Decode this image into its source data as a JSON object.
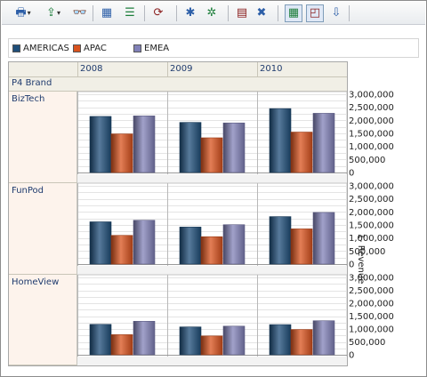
{
  "toolbar": {
    "buttons": [
      {
        "icon": "print-icon",
        "glyph": "🖶",
        "dropdown": true
      },
      {
        "icon": "export-icon",
        "glyph": "⇪",
        "dropdown": true
      },
      {
        "icon": "binoculars-icon",
        "glyph": "👓",
        "dropdown": false
      },
      {
        "icon": "insert-row-icon",
        "glyph": "▦",
        "dropdown": false
      },
      {
        "icon": "format-icon",
        "glyph": "☰",
        "dropdown": false
      },
      {
        "icon": "refresh-icon",
        "glyph": "⟳",
        "dropdown": false
      },
      {
        "icon": "new-star-icon",
        "glyph": "✱",
        "dropdown": false
      },
      {
        "icon": "add-star-icon",
        "glyph": "✲",
        "dropdown": false
      },
      {
        "icon": "calculator-icon",
        "glyph": "▤",
        "dropdown": false
      },
      {
        "icon": "delete-sum-icon",
        "glyph": "✖",
        "dropdown": false
      },
      {
        "icon": "table-view-icon",
        "glyph": "▦",
        "dropdown": false,
        "active": true
      },
      {
        "icon": "graph-view-icon",
        "glyph": "◰",
        "dropdown": false,
        "active": true
      },
      {
        "icon": "sort-icon",
        "glyph": "⇩",
        "dropdown": false
      }
    ]
  },
  "legend": {
    "items": [
      {
        "label": "AMERICAS",
        "color": "#1f4e79"
      },
      {
        "label": "APAC",
        "color": "#d9531e"
      },
      {
        "label": "EMEA",
        "color": "#8181b8"
      }
    ]
  },
  "row_header_title": "P4 Brand",
  "chart_data": {
    "type": "bar",
    "y_axis_title": "1- Revenue",
    "ylim": [
      0,
      3000000
    ],
    "y_ticks": [
      "3,000,000",
      "2,500,000",
      "2,000,000",
      "1,500,000",
      "1,000,000",
      "500,000",
      "0"
    ],
    "y_tick_values": [
      3000000,
      2500000,
      2000000,
      1500000,
      1000000,
      500000,
      0
    ],
    "columns": [
      "2008",
      "2009",
      "2010"
    ],
    "series_names": [
      "AMERICAS",
      "APAC",
      "EMEA"
    ],
    "series_colors": [
      "#1f4e79",
      "#d9531e",
      "#8181b8"
    ],
    "grid": true,
    "legend_position": "top",
    "panels": [
      {
        "row": "BizTech",
        "values": [
          [
            2150000,
            1480000,
            2170000
          ],
          [
            1920000,
            1330000,
            1900000
          ],
          [
            2450000,
            1550000,
            2270000
          ]
        ]
      },
      {
        "row": "FunPod",
        "values": [
          [
            1620000,
            1100000,
            1680000
          ],
          [
            1420000,
            1050000,
            1510000
          ],
          [
            1820000,
            1350000,
            1980000
          ]
        ]
      },
      {
        "row": "HomeView",
        "values": [
          [
            1180000,
            780000,
            1300000
          ],
          [
            1080000,
            730000,
            1110000
          ],
          [
            1170000,
            980000,
            1320000
          ]
        ]
      }
    ]
  }
}
